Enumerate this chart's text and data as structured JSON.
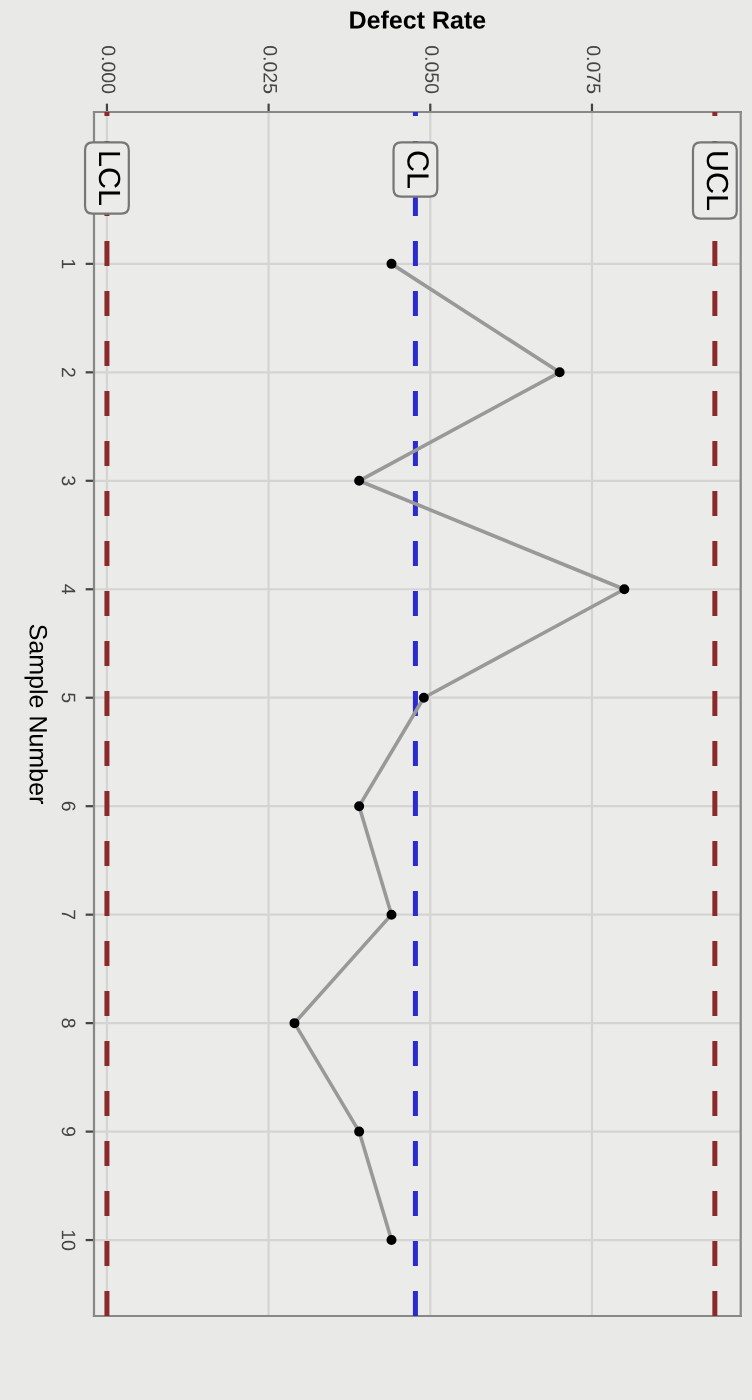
{
  "chart_data": {
    "type": "line",
    "xlabel": "Defect Rate",
    "ylabel": "Sample Number",
    "series": [
      {
        "color": "#999999",
        "x": [
          0.044,
          0.07,
          0.039,
          0.08,
          0.049,
          0.039,
          0.044,
          0.029,
          0.039,
          0.044
        ],
        "values": [
          1,
          2,
          3,
          4,
          5,
          6,
          7,
          8,
          9,
          10
        ]
      }
    ],
    "ylim": [
      10.7,
      -0.4
    ],
    "yticks": [
      1,
      2,
      3,
      4,
      5,
      6,
      7,
      8,
      9,
      10
    ],
    "xlim": [
      -0.002,
      0.098
    ],
    "xticks": [
      {
        "value": 0,
        "label": "0.000"
      },
      {
        "value": 0.025,
        "label": "0.025"
      },
      {
        "value": 0.05,
        "label": "0.050"
      },
      {
        "value": 0.075,
        "label": "0.075"
      }
    ],
    "ref_lines": [
      {
        "axis": "x",
        "value": 0.094,
        "label": "UCL",
        "color": "#8b2a2a",
        "line_style": "dashed"
      },
      {
        "axis": "x",
        "value": 0.0477,
        "label": "CL",
        "color": "#2b2bd0",
        "line_style": "dashed"
      },
      {
        "axis": "x",
        "value": 0.0,
        "label": "LCL",
        "color": "#8b2a2a",
        "line_style": "dashed"
      }
    ],
    "grid": true,
    "marker": "circle",
    "line_style": "solid"
  }
}
